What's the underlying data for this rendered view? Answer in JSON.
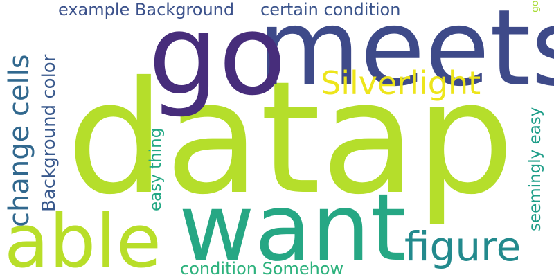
{
  "words": [
    {
      "id": "datap",
      "text": "datap",
      "color": "#b5de2b",
      "orientation": "horizontal"
    },
    {
      "id": "meets",
      "text": "meets",
      "color": "#3e4a89",
      "orientation": "horizontal"
    },
    {
      "id": "go",
      "text": "go",
      "color": "#472d7b",
      "orientation": "horizontal"
    },
    {
      "id": "want",
      "text": "want",
      "color": "#26a784",
      "orientation": "horizontal"
    },
    {
      "id": "able",
      "text": "able",
      "color": "#b8de29",
      "orientation": "horizontal"
    },
    {
      "id": "figure",
      "text": "figure",
      "color": "#238a8d",
      "orientation": "horizontal"
    },
    {
      "id": "silverlight",
      "text": "Silverlight",
      "color": "#ede51b",
      "orientation": "horizontal"
    },
    {
      "id": "example-background",
      "text": "example Background",
      "color": "#3b518b",
      "orientation": "horizontal"
    },
    {
      "id": "certain-condition",
      "text": "certain condition",
      "color": "#3a538b",
      "orientation": "horizontal"
    },
    {
      "id": "condition-somehow",
      "text": "condition Somehow",
      "color": "#2db27d",
      "orientation": "horizontal"
    },
    {
      "id": "change-cells",
      "text": "change cells",
      "color": "#31688e",
      "orientation": "vertical"
    },
    {
      "id": "background-color",
      "text": "Background color",
      "color": "#38588c",
      "orientation": "vertical"
    },
    {
      "id": "easy-thing",
      "text": "easy thing",
      "color": "#22a884",
      "orientation": "vertical"
    },
    {
      "id": "seemingly-easy",
      "text": "seemingly easy",
      "color": "#1f9e89",
      "orientation": "vertical"
    },
    {
      "id": "go-small",
      "text": "go",
      "color": "#a8db34",
      "orientation": "vertical"
    }
  ]
}
